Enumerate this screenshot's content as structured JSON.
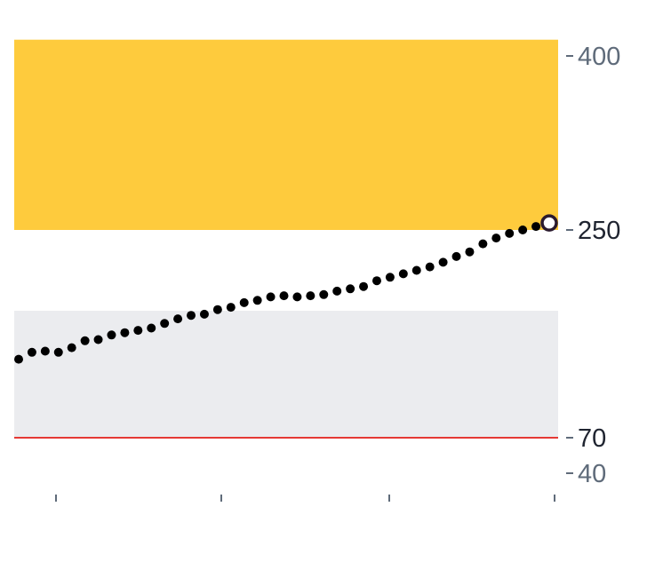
{
  "chart_data": {
    "type": "scatter",
    "title": "",
    "xlabel": "",
    "ylabel": "",
    "ylim": [
      40,
      400
    ],
    "y_ticks": [
      {
        "value": 400,
        "label": "400",
        "emphasis": false
      },
      {
        "value": 250,
        "label": "250",
        "emphasis": true
      },
      {
        "value": 70,
        "label": "70",
        "emphasis": true
      },
      {
        "value": 40,
        "label": "40",
        "emphasis": false
      }
    ],
    "x_ticks_count": 4,
    "bands": [
      {
        "from": 250,
        "to": 414,
        "color": "#fecb3d"
      },
      {
        "from": 70,
        "to": 180,
        "color": "#ebecef"
      }
    ],
    "threshold_line": {
      "value": 70,
      "color": "#e53935"
    },
    "series": [
      {
        "values": [
          138,
          144,
          145,
          144,
          148,
          154,
          155,
          159,
          161,
          163,
          165,
          169,
          173,
          176,
          177,
          181,
          183,
          187,
          189,
          192,
          193,
          192,
          193,
          194,
          197,
          199,
          201,
          206,
          209,
          212,
          215,
          218,
          222,
          227,
          231,
          238,
          243,
          247,
          250,
          253,
          256
        ]
      }
    ],
    "marker_color": "#000000",
    "last_point_marker": {
      "fill": "#ffffff",
      "stroke": "#2a1a2e"
    },
    "grid": false,
    "legend": "none"
  }
}
